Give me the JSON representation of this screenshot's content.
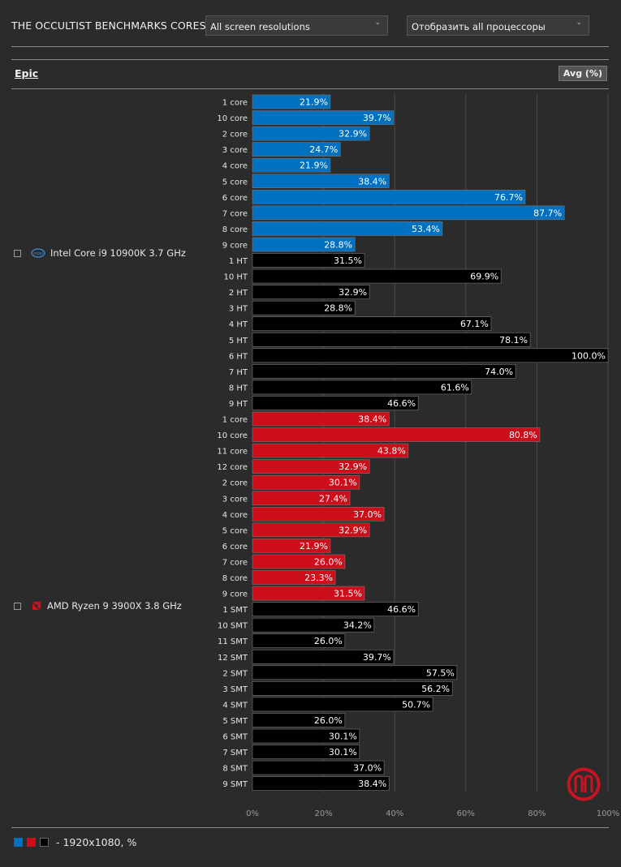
{
  "header": {
    "title": "THE OCCULTIST BENCHMARKS CORES",
    "resolution_select": "All screen resolutions",
    "processor_select": "Отобразить all процессоры"
  },
  "section": {
    "preset": "Epic",
    "metric_button": "Avg (%)"
  },
  "processors": [
    {
      "name": "Intel Core i9 10900K 3.7 GHz",
      "icon": "intel-logo-icon"
    },
    {
      "name": "AMD Ryzen 9 3900X 3.8 GHz",
      "icon": "amd-logo-icon"
    }
  ],
  "colors": {
    "intel_core": "#0070c0",
    "amd_core": "#cc0d1a",
    "threads": "#000000",
    "grid": "#4a4a4a",
    "background": "#2b2b2b"
  },
  "legend": {
    "text": "- 1920x1080, %"
  },
  "chart_data": {
    "type": "bar",
    "orientation": "horizontal",
    "xlabel": "",
    "ylabel": "",
    "xlim": [
      0,
      100
    ],
    "ticks": [
      "0%",
      "20%",
      "40%",
      "60%",
      "80%",
      "100%"
    ],
    "groups": [
      {
        "processor": "Intel Core i9 10900K 3.7 GHz",
        "bars": [
          {
            "label": "1 core",
            "value": 21.9,
            "kind": "intel"
          },
          {
            "label": "10 core",
            "value": 39.7,
            "kind": "intel"
          },
          {
            "label": "2 core",
            "value": 32.9,
            "kind": "intel"
          },
          {
            "label": "3 core",
            "value": 24.7,
            "kind": "intel"
          },
          {
            "label": "4 core",
            "value": 21.9,
            "kind": "intel"
          },
          {
            "label": "5 core",
            "value": 38.4,
            "kind": "intel"
          },
          {
            "label": "6 core",
            "value": 76.7,
            "kind": "intel"
          },
          {
            "label": "7 core",
            "value": 87.7,
            "kind": "intel"
          },
          {
            "label": "8 core",
            "value": 53.4,
            "kind": "intel"
          },
          {
            "label": "9 core",
            "value": 28.8,
            "kind": "intel"
          },
          {
            "label": "1 HT",
            "value": 31.5,
            "kind": "thread"
          },
          {
            "label": "10 HT",
            "value": 69.9,
            "kind": "thread"
          },
          {
            "label": "2 HT",
            "value": 32.9,
            "kind": "thread"
          },
          {
            "label": "3 HT",
            "value": 28.8,
            "kind": "thread"
          },
          {
            "label": "4 HT",
            "value": 67.1,
            "kind": "thread"
          },
          {
            "label": "5 HT",
            "value": 78.1,
            "kind": "thread"
          },
          {
            "label": "6 HT",
            "value": 100.0,
            "kind": "thread"
          },
          {
            "label": "7 HT",
            "value": 74.0,
            "kind": "thread"
          },
          {
            "label": "8 HT",
            "value": 61.6,
            "kind": "thread"
          },
          {
            "label": "9 HT",
            "value": 46.6,
            "kind": "thread"
          }
        ]
      },
      {
        "processor": "AMD Ryzen 9 3900X 3.8 GHz",
        "bars": [
          {
            "label": "1 core",
            "value": 38.4,
            "kind": "amd"
          },
          {
            "label": "10 core",
            "value": 80.8,
            "kind": "amd"
          },
          {
            "label": "11 core",
            "value": 43.8,
            "kind": "amd"
          },
          {
            "label": "12 core",
            "value": 32.9,
            "kind": "amd"
          },
          {
            "label": "2 core",
            "value": 30.1,
            "kind": "amd"
          },
          {
            "label": "3 core",
            "value": 27.4,
            "kind": "amd"
          },
          {
            "label": "4 core",
            "value": 37.0,
            "kind": "amd"
          },
          {
            "label": "5 core",
            "value": 32.9,
            "kind": "amd"
          },
          {
            "label": "6 core",
            "value": 21.9,
            "kind": "amd"
          },
          {
            "label": "7 core",
            "value": 26.0,
            "kind": "amd"
          },
          {
            "label": "8 core",
            "value": 23.3,
            "kind": "amd"
          },
          {
            "label": "9 core",
            "value": 31.5,
            "kind": "amd"
          },
          {
            "label": "1 SMT",
            "value": 46.6,
            "kind": "thread"
          },
          {
            "label": "10 SMT",
            "value": 34.2,
            "kind": "thread"
          },
          {
            "label": "11 SMT",
            "value": 26.0,
            "kind": "thread"
          },
          {
            "label": "12 SMT",
            "value": 39.7,
            "kind": "thread"
          },
          {
            "label": "2 SMT",
            "value": 57.5,
            "kind": "thread"
          },
          {
            "label": "3 SMT",
            "value": 56.2,
            "kind": "thread"
          },
          {
            "label": "4 SMT",
            "value": 50.7,
            "kind": "thread"
          },
          {
            "label": "5 SMT",
            "value": 26.0,
            "kind": "thread"
          },
          {
            "label": "6 SMT",
            "value": 30.1,
            "kind": "thread"
          },
          {
            "label": "7 SMT",
            "value": 30.1,
            "kind": "thread"
          },
          {
            "label": "8 SMT",
            "value": 37.0,
            "kind": "thread"
          },
          {
            "label": "9 SMT",
            "value": 38.4,
            "kind": "thread"
          }
        ]
      }
    ]
  }
}
